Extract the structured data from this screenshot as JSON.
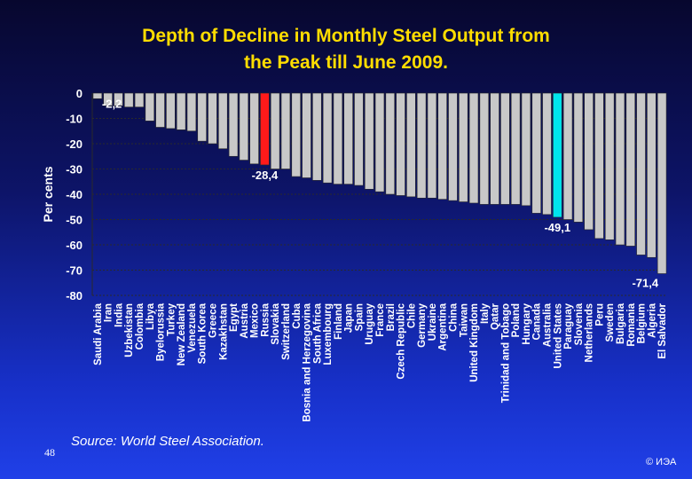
{
  "page": {
    "source": "Source: World Steel Association.",
    "page_number": "48",
    "copyright": "© ИЭА"
  },
  "chart_data": {
    "type": "bar",
    "title": "Depth of Decline in Monthly Steel Output from the Peak till June 2009.",
    "title_lines": [
      "Depth of Decline in Monthly Steel Output from",
      "the Peak till June 2009."
    ],
    "xlabel": "",
    "ylabel": "Per cents",
    "ylim": [
      -80,
      0
    ],
    "yticks": [
      0,
      -10,
      -20,
      -30,
      -40,
      -50,
      -60,
      -70,
      -80
    ],
    "grid": true,
    "categories": [
      "Saudi Arabia",
      "Iran",
      "India",
      "Uzbekistan",
      "Colombia",
      "Libya",
      "Byelorussia",
      "Turkey",
      "New Zealand",
      "Venezuela",
      "South Korea",
      "Greece",
      "Kazakhstan",
      "Egypt",
      "Austria",
      "Mexico",
      "Russia",
      "Slovakia",
      "Switzerland",
      "Cuba",
      "Bosnia and Herzegovina",
      "South Africa",
      "Luxembourg",
      "Finland",
      "Japan",
      "Spain",
      "Uruguay",
      "France",
      "Brazil",
      "Czech Republic",
      "Chile",
      "Germany",
      "Ukraine",
      "Argentina",
      "China",
      "Taiwan",
      "United Kingdom",
      "Italy",
      "Qatar",
      "Trinidad and Tobago",
      "Poland",
      "Hungary",
      "Canada",
      "Australia",
      "United States",
      "Paraguay",
      "Slovenia",
      "Netherlands",
      "Peru",
      "Sweden",
      "Bulgaria",
      "Romania",
      "Belgium",
      "Algeria",
      "El Salvador"
    ],
    "values": [
      -2.2,
      -5,
      -5,
      -5.5,
      -5.5,
      -11,
      -13.5,
      -14,
      -14.5,
      -15,
      -19,
      -20,
      -22,
      -25,
      -26.5,
      -28,
      -28.4,
      -30,
      -30,
      -33,
      -33.5,
      -34.5,
      -35.5,
      -36,
      -36,
      -36.5,
      -38,
      -39,
      -40,
      -40.5,
      -41,
      -41.5,
      -41.5,
      -42,
      -42.5,
      -43,
      -43.5,
      -44,
      -44,
      -44,
      -44,
      -44.5,
      -47.5,
      -48,
      -49.1,
      -50,
      -51,
      -54,
      -57.5,
      -58,
      -60,
      -60.5,
      -64,
      -65,
      -71.4
    ],
    "highlight": {
      "Russia": "#ff1a1a",
      "United States": "#00e5ee"
    },
    "data_labels": [
      {
        "category": "Saudi Arabia",
        "text": "-2,2"
      },
      {
        "category": "Russia",
        "text": "-28,4"
      },
      {
        "category": "United States",
        "text": "-49,1"
      },
      {
        "category": "El Salvador",
        "text": "-71,4"
      }
    ],
    "colors": {
      "bar": "#c8c8c8",
      "bar_edge": "#2a2a2a",
      "text": "#ffffff",
      "grid": "#2a2a2a",
      "title": "#ffdd00"
    }
  }
}
